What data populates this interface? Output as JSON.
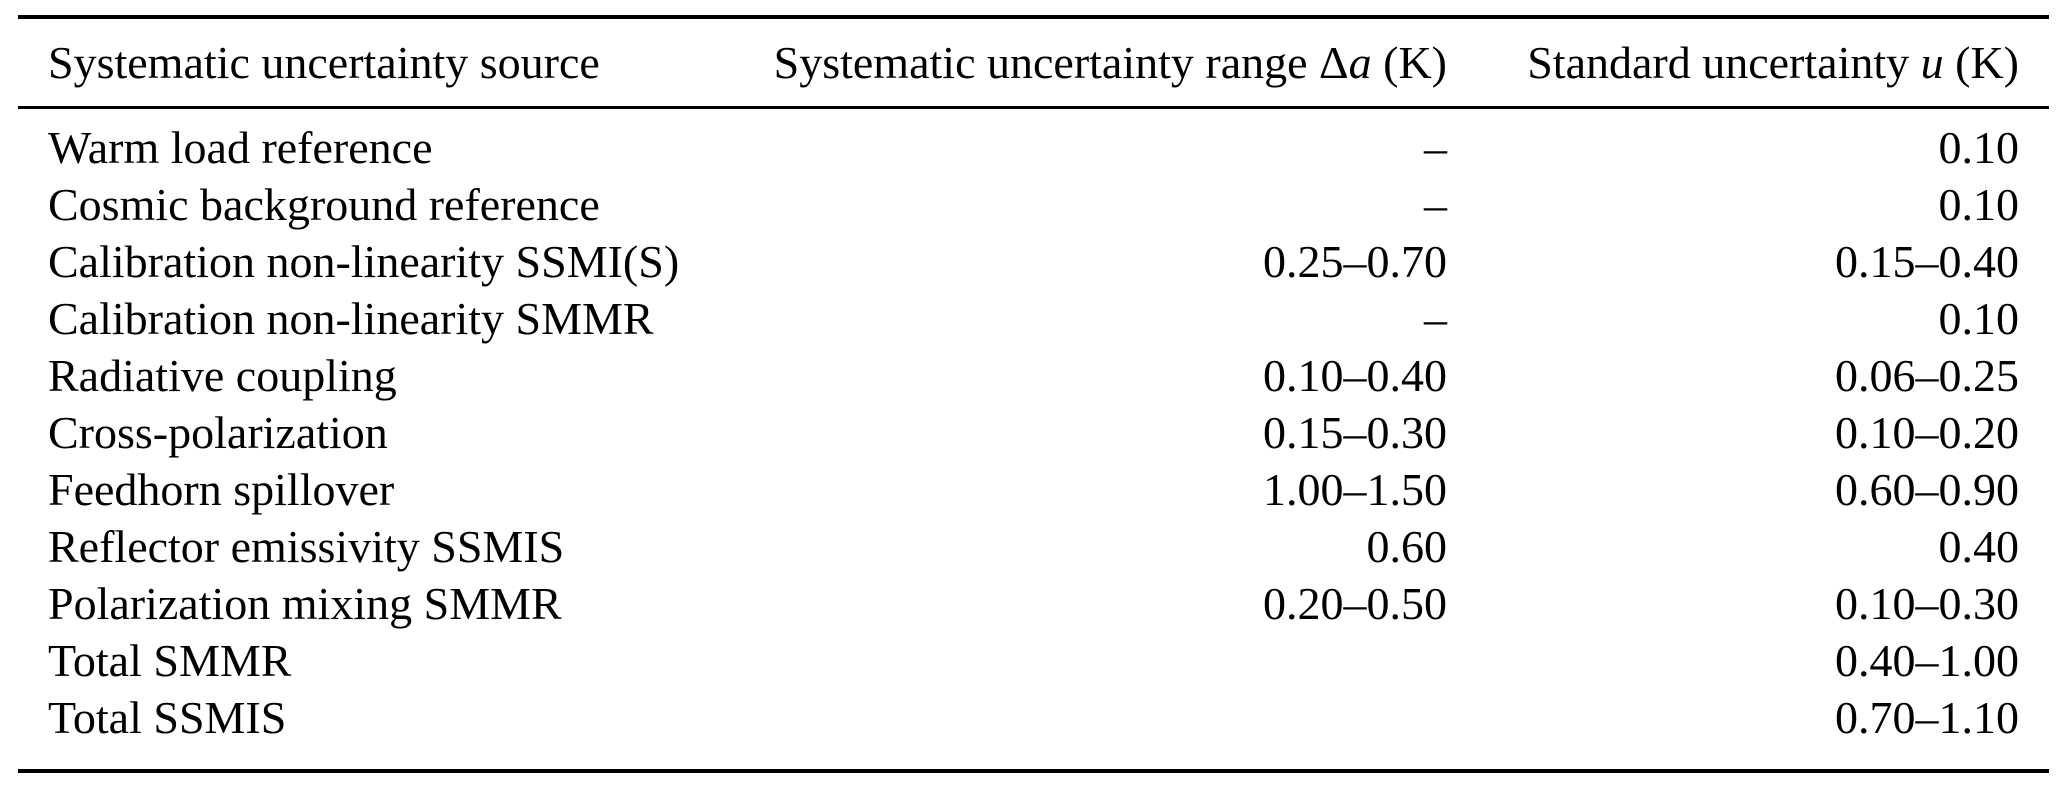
{
  "colors": {
    "background": "#ffffff",
    "text": "#000000",
    "rule": "#000000"
  },
  "table": {
    "header": {
      "source": "Systematic uncertainty source",
      "range_text": "Systematic uncertainty range",
      "range_delta": "Δ",
      "range_var": "a",
      "range_unit": "(K)",
      "std_text": "Standard uncertainty",
      "std_var": "u",
      "std_unit": "(K)"
    },
    "rows": [
      {
        "source": "Warm load reference",
        "range": "–",
        "std": "0.10"
      },
      {
        "source": "Cosmic background reference",
        "range": "–",
        "std": "0.10"
      },
      {
        "source": "Calibration non-linearity SSMI(S)",
        "range": "0.25–0.70",
        "std": "0.15–0.40"
      },
      {
        "source": "Calibration non-linearity SMMR",
        "range": "–",
        "std": "0.10"
      },
      {
        "source": "Radiative coupling",
        "range": "0.10–0.40",
        "std": "0.06–0.25"
      },
      {
        "source": "Cross-polarization",
        "range": "0.15–0.30",
        "std": "0.10–0.20"
      },
      {
        "source": "Feedhorn spillover",
        "range": "1.00–1.50",
        "std": "0.60–0.90"
      },
      {
        "source": "Reflector emissivity SSMIS",
        "range": "0.60",
        "std": "0.40"
      },
      {
        "source": "Polarization mixing SMMR",
        "range": "0.20–0.50",
        "std": "0.10–0.30"
      },
      {
        "source": "Total SMMR",
        "range": "",
        "std": "0.40–1.00"
      },
      {
        "source": "Total SSMIS",
        "range": "",
        "std": "0.70–1.10"
      }
    ]
  }
}
